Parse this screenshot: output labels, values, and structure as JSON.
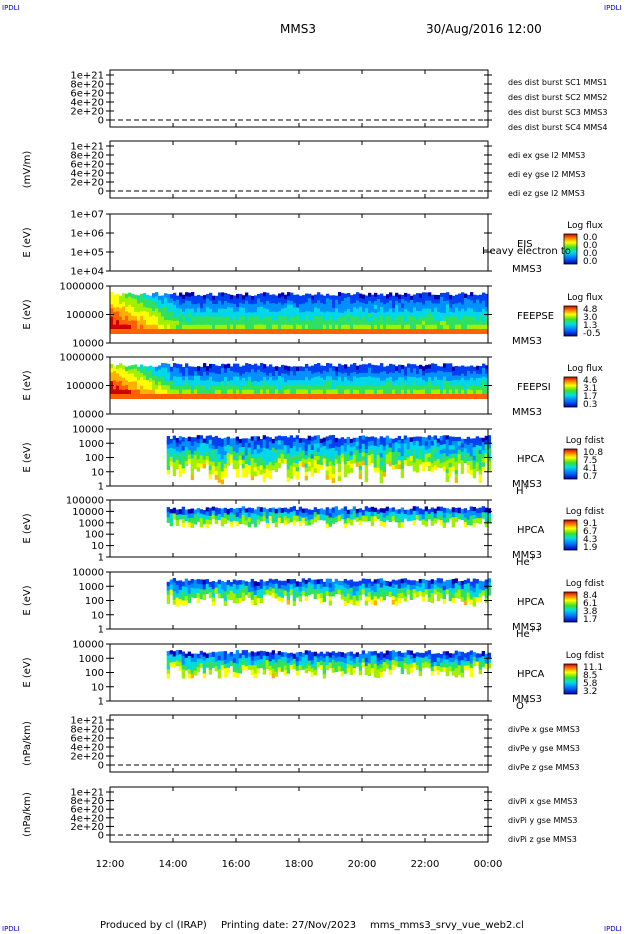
{
  "header": {
    "corner_left": "IPDLI",
    "corner_right": "IPDLI",
    "spacecraft": "MMS3",
    "datetime": "30/Aug/2016 12:00"
  },
  "footer": {
    "produced_by": "Produced by cl (IRAP)",
    "printing_date": "Printing date: 27/Nov/2023",
    "file_name": "mms_mms3_srvy_vue_web2.cl",
    "corner_left": "IPDLI",
    "corner_right": "IPDLI"
  },
  "colors": {
    "red": "#cc0000",
    "green": "#22bb22",
    "blue": "#0000cc",
    "magenta": "#cc00cc"
  },
  "chart_data": [
    {
      "type": "line",
      "id": "des-burst",
      "ylabel": "",
      "yticks": [
        "1e+21",
        "8e+20",
        "6e+20",
        "4e+20",
        "2e+20",
        "0"
      ],
      "ylim": [
        0,
        1e+21
      ],
      "legend": [
        {
          "text": "des dist burst SC1 MMS1",
          "color": "#0000cc"
        },
        {
          "text": "des dist burst SC2 MMS2",
          "color": "#cc00cc"
        },
        {
          "text": "des dist burst SC3 MMS3",
          "color": "#cc0000"
        },
        {
          "text": "des dist burst SC4 MMS4",
          "color": "#22bb22"
        }
      ],
      "series": []
    },
    {
      "type": "line",
      "id": "edi-e",
      "ylabel": "(mV/m)",
      "yticks": [
        "1e+21",
        "8e+20",
        "6e+20",
        "4e+20",
        "2e+20",
        "0"
      ],
      "ylim": [
        0,
        1e+21
      ],
      "legend": [
        {
          "text": "edi ex gse l2 MMS3",
          "color": "#cc0000"
        },
        {
          "text": "edi ey gse l2 MMS3",
          "color": "#22bb22"
        },
        {
          "text": "edi ez gse l2 MMS3",
          "color": "#0000cc"
        }
      ],
      "series": []
    },
    {
      "type": "heatmap",
      "id": "eis",
      "ylabel": "E (eV)",
      "yticks": [
        "1e+07",
        "1e+06",
        "1e+05",
        "1e+04"
      ],
      "ylim": [
        10000,
        10000000
      ],
      "yscale": "log",
      "instrument": "EIS",
      "species": "MMS3",
      "overlay": "Heavy electron to",
      "colorbar": {
        "title": "Log flux",
        "ticks": [
          "0.0",
          "0.0",
          "0.0",
          "0.0"
        ]
      },
      "data_start": null
    },
    {
      "type": "heatmap",
      "id": "feepse",
      "ylabel": "E (eV)",
      "yticks": [
        "1000000",
        "100000",
        "10000"
      ],
      "ylim": [
        10000,
        1000000
      ],
      "yscale": "log",
      "instrument": "FEEPSE",
      "species": "MMS3",
      "colorbar": {
        "title": "Log flux",
        "ticks": [
          "4.8",
          "3.0",
          "1.3",
          "-0.5"
        ]
      },
      "data_start": 12.0
    },
    {
      "type": "heatmap",
      "id": "feepsi",
      "ylabel": "E (eV)",
      "yticks": [
        "1000000",
        "100000",
        "10000"
      ],
      "ylim": [
        10000,
        1000000
      ],
      "yscale": "log",
      "instrument": "FEEPSI",
      "species": "MMS3",
      "colorbar": {
        "title": "Log flux",
        "ticks": [
          "4.6",
          "3.1",
          "1.7",
          "0.3"
        ]
      },
      "data_start": 12.0
    },
    {
      "type": "heatmap",
      "id": "hpca-h",
      "ylabel": "E (eV)",
      "yticks": [
        "10000",
        "1000",
        "100",
        "10",
        "1"
      ],
      "ylim": [
        1,
        40000
      ],
      "yscale": "log",
      "instrument": "HPCA",
      "species": "MMS3",
      "ion": "H",
      "ion_charge": "+",
      "colorbar": {
        "title": "Log fdist",
        "ticks": [
          "10.8",
          "7.5",
          "4.1",
          "0.7"
        ]
      },
      "data_start": 13.8
    },
    {
      "type": "heatmap",
      "id": "hpca-he",
      "ylabel": "E (eV)",
      "yticks": [
        "100000",
        "10000",
        "1000",
        "100",
        "10",
        "1"
      ],
      "ylim": [
        1,
        100000
      ],
      "yscale": "log",
      "instrument": "HPCA",
      "species": "MMS3",
      "ion": "He",
      "ion_charge": "+",
      "colorbar": {
        "title": "Log fdist",
        "ticks": [
          "9.1",
          "6.7",
          "4.3",
          "1.9"
        ]
      },
      "data_start": 13.8
    },
    {
      "type": "heatmap",
      "id": "hpca-hepp",
      "ylabel": "E (eV)",
      "yticks": [
        "10000",
        "1000",
        "100",
        "10",
        "1"
      ],
      "ylim": [
        1,
        40000
      ],
      "yscale": "log",
      "instrument": "HPCA",
      "species": "MMS3",
      "ion": "He",
      "ion_charge": "++",
      "colorbar": {
        "title": "Log fdist",
        "ticks": [
          "8.4",
          "6.1",
          "3.8",
          "1.7"
        ]
      },
      "data_start": 13.8
    },
    {
      "type": "heatmap",
      "id": "hpca-o",
      "ylabel": "E (eV)",
      "yticks": [
        "10000",
        "1000",
        "100",
        "10",
        "1"
      ],
      "ylim": [
        1,
        40000
      ],
      "yscale": "log",
      "instrument": "HPCA",
      "species": "MMS3",
      "ion": "O",
      "ion_charge": "+",
      "colorbar": {
        "title": "Log fdist",
        "ticks": [
          "11.1",
          "8.5",
          "5.8",
          "3.2"
        ]
      },
      "data_start": 13.8
    },
    {
      "type": "line",
      "id": "divpe",
      "ylabel": "(nPa/km)",
      "yticks": [
        "1e+21",
        "8e+20",
        "6e+20",
        "4e+20",
        "2e+20",
        "0"
      ],
      "ylim": [
        0,
        1e+21
      ],
      "legend": [
        {
          "text": "divPe x gse MMS3",
          "color": "#cc0000"
        },
        {
          "text": "divPe y gse MMS3",
          "color": "#22bb22"
        },
        {
          "text": "divPe z gse MMS3",
          "color": "#0000cc"
        }
      ],
      "series": []
    },
    {
      "type": "line",
      "id": "divpi",
      "ylabel": "(nPa/km)",
      "yticks": [
        "1e+21",
        "8e+20",
        "6e+20",
        "4e+20",
        "2e+20",
        "0"
      ],
      "ylim": [
        0,
        1e+21
      ],
      "legend": [
        {
          "text": "divPi x gse MMS3",
          "color": "#cc0000"
        },
        {
          "text": "divPi y gse MMS3",
          "color": "#22bb22"
        },
        {
          "text": "divPi z gse MMS3",
          "color": "#0000cc"
        }
      ],
      "series": []
    }
  ],
  "xaxis": {
    "ticks": [
      "12:00",
      "14:00",
      "16:00",
      "18:00",
      "20:00",
      "22:00",
      "00:00"
    ],
    "xlim": [
      12,
      24
    ]
  }
}
